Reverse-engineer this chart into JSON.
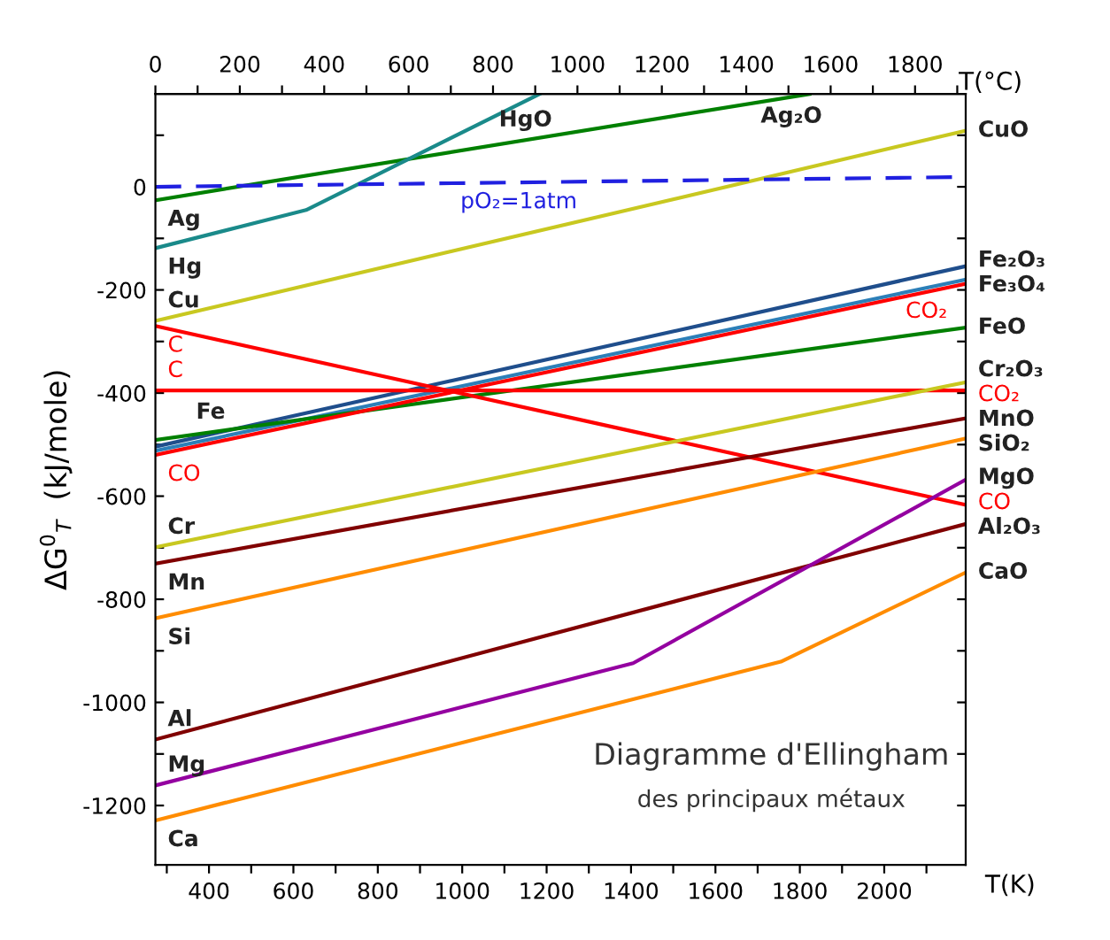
{
  "chart_data": {
    "type": "line",
    "title": "Diagramme d'Ellingham",
    "subtitle": "des principaux métaux",
    "xlabel": "T(K)",
    "x2label": "T(°C)",
    "ylabel": "ΔG$^{0}$$_{T}$  (kJ/mole)",
    "xlim": [
      273,
      2193
    ],
    "ylim": [
      -1315,
      180
    ],
    "xticks": [
      {
        "value": 300,
        "label": null
      },
      400,
      {
        "value": 500,
        "label": null
      },
      600,
      {
        "value": 700,
        "label": null
      },
      800,
      {
        "value": 900,
        "label": null
      },
      1000,
      {
        "value": 1100,
        "label": null
      },
      1200,
      {
        "value": 1300,
        "label": null
      },
      1400,
      {
        "value": 1500,
        "label": null
      },
      1600,
      {
        "value": 1700,
        "label": null
      },
      1800,
      {
        "value": 1900,
        "label": null
      },
      2000,
      {
        "value": 2100,
        "label": null
      }
    ],
    "x2lim": [
      0,
      1920
    ],
    "x2ticks": [
      0,
      {
        "value": 100,
        "label": null
      },
      200,
      {
        "value": 300,
        "label": null
      },
      400,
      {
        "value": 500,
        "label": null
      },
      600,
      {
        "value": 700,
        "label": null
      },
      800,
      {
        "value": 900,
        "label": null
      },
      1000,
      {
        "value": 1100,
        "label": null
      },
      1200,
      {
        "value": 1300,
        "label": null
      },
      1400,
      {
        "value": 1500,
        "label": null
      },
      1600,
      {
        "value": 1700,
        "label": null
      },
      1800,
      {
        "value": 1900,
        "label": null
      }
    ],
    "yticks": [
      -1200,
      {
        "value": -1100,
        "label": null
      },
      -1000,
      {
        "value": -900,
        "label": null
      },
      -800,
      {
        "value": -700,
        "label": null
      },
      -600,
      {
        "value": -500,
        "label": null
      },
      -400,
      {
        "value": -300,
        "label": null
      },
      -200,
      {
        "value": -100,
        "label": null
      },
      0,
      {
        "value": 100,
        "label": null
      }
    ],
    "grid": false,
    "legend": false,
    "marker": "none",
    "series": [
      {
        "color": "#008000",
        "x": [
          273,
          1823
        ],
        "values": [
          -26,
          180
        ]
      },
      {
        "color": "#1a8a8a",
        "x": [
          273,
          630,
          1183
        ],
        "values": [
          -119,
          -45,
          180
        ]
      },
      {
        "color": "#c8c820",
        "x": [
          273,
          2193
        ],
        "values": [
          -260,
          109
        ]
      },
      {
        "color": "#2020e0",
        "line_style": "dashed",
        "x": [
          273,
          2193
        ],
        "values": [
          0,
          19
        ]
      },
      {
        "color": "#1f4e8c",
        "x": [
          273,
          2193
        ],
        "values": [
          -504,
          -154
        ]
      },
      {
        "color": "#2c7fb8",
        "x": [
          273,
          2193
        ],
        "values": [
          -512,
          -180
        ]
      },
      {
        "color": "#008000",
        "x": [
          273,
          2193
        ],
        "values": [
          -491,
          -273
        ]
      },
      {
        "color": "#ff0000",
        "x": [
          273,
          2193
        ],
        "values": [
          -520,
          -188
        ]
      },
      {
        "color": "#ff0000",
        "x": [
          273,
          2193
        ],
        "values": [
          -395,
          -395
        ]
      },
      {
        "color": "#ff0000",
        "x": [
          273,
          2193
        ],
        "values": [
          -270,
          -617
        ]
      },
      {
        "color": "#c8c820",
        "x": [
          273,
          2193
        ],
        "values": [
          -699,
          -379
        ]
      },
      {
        "color": "#800000",
        "x": [
          273,
          2193
        ],
        "values": [
          -731,
          -449
        ]
      },
      {
        "color": "#ff8c00",
        "x": [
          273,
          2193
        ],
        "values": [
          -837,
          -488
        ]
      },
      {
        "color": "#800000",
        "x": [
          273,
          2193
        ],
        "values": [
          -1072,
          -654
        ]
      },
      {
        "color": "#9400a0",
        "x": [
          273,
          1405,
          2193
        ],
        "values": [
          -1161,
          -924,
          -568
        ]
      },
      {
        "color": "#ff8c00",
        "x": [
          273,
          1755,
          2193
        ],
        "values": [
          -1229,
          -921,
          -748
        ]
      }
    ],
    "annotations": [
      {
        "text": "HgO",
        "x": 1150,
        "y": 167
      },
      {
        "text": "Ag₂O",
        "x": 1780,
        "y": 174
      },
      {
        "text": "pO₂=1atm",
        "x": 1134,
        "y": 8.5
      },
      {
        "text": "Ag",
        "x": 273,
        "y": -26
      },
      {
        "text": "Hg",
        "x": 273,
        "y": -119
      },
      {
        "text": "Cu",
        "x": 273,
        "y": -260
      },
      {
        "text": "C",
        "x": 273,
        "y": -270
      },
      {
        "text": "C",
        "x": 273,
        "y": -395
      },
      {
        "text": "Fe",
        "x": 404,
        "y": -476
      },
      {
        "text": "CO",
        "x": 273,
        "y": -520
      },
      {
        "text": "Cr",
        "x": 273,
        "y": -699
      },
      {
        "text": "Mn",
        "x": 273,
        "y": -731
      },
      {
        "text": "Si",
        "x": 273,
        "y": -837
      },
      {
        "text": "Al",
        "x": 273,
        "y": -1072
      },
      {
        "text": "Mg",
        "x": 273,
        "y": -1161
      },
      {
        "text": "Ca",
        "x": 273,
        "y": -1229
      },
      {
        "text": "CO₂",
        "x": 2100,
        "y": -204
      },
      {
        "text": "CuO",
        "x": 2193,
        "y": 109
      },
      {
        "text": "Fe₂O₃",
        "x": 2193,
        "y": -154
      },
      {
        "text": "Fe₃O₄",
        "x": 2193,
        "y": -180
      },
      {
        "text": "FeO",
        "x": 2193,
        "y": -273
      },
      {
        "text": "Cr₂O₃",
        "x": 2193,
        "y": -379
      },
      {
        "text": "CO₂",
        "x": 2193,
        "y": -395
      },
      {
        "text": "MnO",
        "x": 2193,
        "y": -449
      },
      {
        "text": "SiO₂",
        "x": 2193,
        "y": -488
      },
      {
        "text": "MgO",
        "x": 2193,
        "y": -568
      },
      {
        "text": "CO",
        "x": 2193,
        "y": -617
      },
      {
        "text": "Al₂O₃",
        "x": 2193,
        "y": -654
      },
      {
        "text": "CaO",
        "x": 2193,
        "y": -748
      }
    ]
  }
}
